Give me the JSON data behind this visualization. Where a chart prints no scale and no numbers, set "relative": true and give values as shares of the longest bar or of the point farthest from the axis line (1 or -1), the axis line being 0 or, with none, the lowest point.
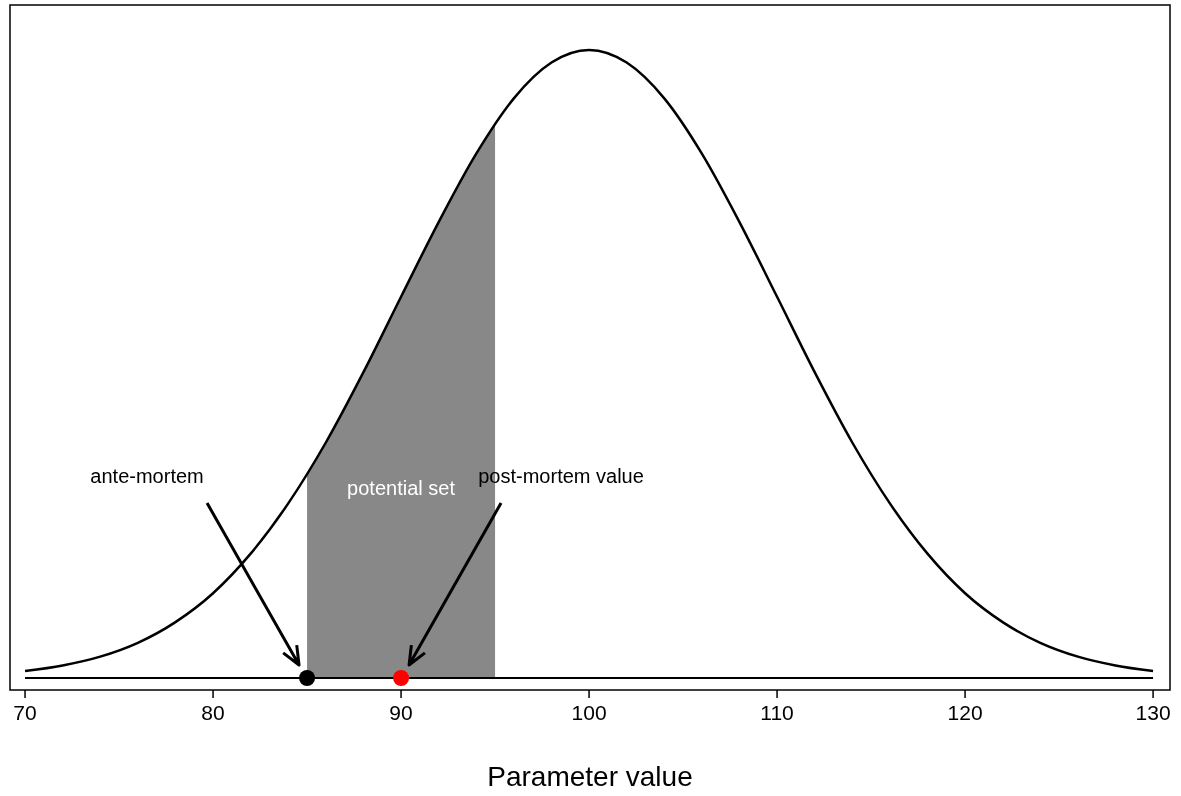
{
  "chart_data": {
    "type": "line",
    "relative": true,
    "xlabel": "Parameter value",
    "xlim": [
      69.2,
      130.9
    ],
    "xticks": [
      70,
      80,
      90,
      100,
      110,
      120,
      130
    ],
    "grid": false,
    "line_style": "solid",
    "series": [
      {
        "type": "area",
        "color": "#888888",
        "x": [
          85,
          86,
          87,
          88,
          89,
          90,
          91,
          92,
          93,
          94,
          95
        ],
        "values": [
          0.325,
          0.375,
          0.43,
          0.487,
          0.546,
          0.607,
          0.667,
          0.726,
          0.783,
          0.835,
          0.882
        ]
      },
      {
        "color": "#000000",
        "x": [
          70,
          72,
          74,
          76,
          78,
          80,
          82,
          84,
          86,
          88,
          90,
          92,
          94,
          96,
          98,
          100,
          102,
          104,
          106,
          108,
          110,
          112,
          114,
          116,
          118,
          120,
          122,
          124,
          126,
          128,
          130
        ],
        "values": [
          0.011,
          0.02,
          0.034,
          0.056,
          0.089,
          0.135,
          0.198,
          0.278,
          0.375,
          0.487,
          0.607,
          0.726,
          0.835,
          0.923,
          0.98,
          1,
          0.98,
          0.923,
          0.835,
          0.726,
          0.607,
          0.487,
          0.375,
          0.278,
          0.198,
          0.135,
          0.089,
          0.056,
          0.034,
          0.02,
          0.011
        ]
      },
      {
        "type": "scatter",
        "x": [
          85,
          90
        ],
        "values": [
          0,
          0
        ],
        "colors": [
          "#000000",
          "#ff0000"
        ]
      }
    ],
    "annotations": [
      "ante-mortem",
      "post-mortem value",
      "potential set"
    ]
  }
}
